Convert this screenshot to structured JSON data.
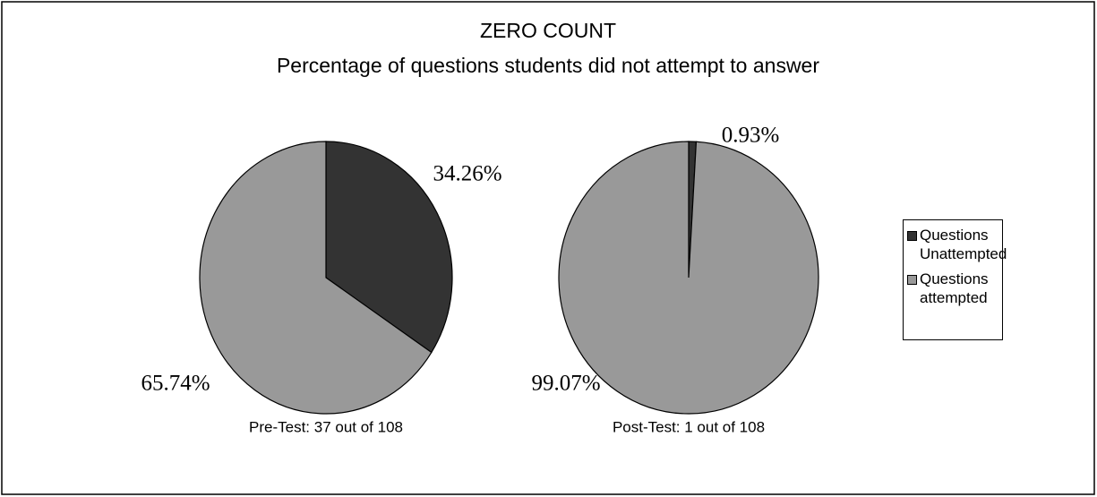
{
  "title": "ZERO COUNT",
  "subtitle": "Percentage of questions students did not attempt to answer",
  "legend_position": "right",
  "chart_data": [
    {
      "type": "pie",
      "label": "Pre-Test: 37 out of 108",
      "categories": [
        "Questions Unattempted",
        "Questions attempted"
      ],
      "values": [
        34.26,
        65.74
      ],
      "value_labels": [
        "34.26%",
        "65.74%"
      ],
      "colors": [
        "#333333",
        "#999999"
      ]
    },
    {
      "type": "pie",
      "label": "Post-Test: 1 out of 108",
      "categories": [
        "Questions Unattempted",
        "Questions attempted"
      ],
      "values": [
        0.93,
        99.07
      ],
      "value_labels": [
        "0.93%",
        "99.07%"
      ],
      "colors": [
        "#333333",
        "#999999"
      ]
    }
  ]
}
